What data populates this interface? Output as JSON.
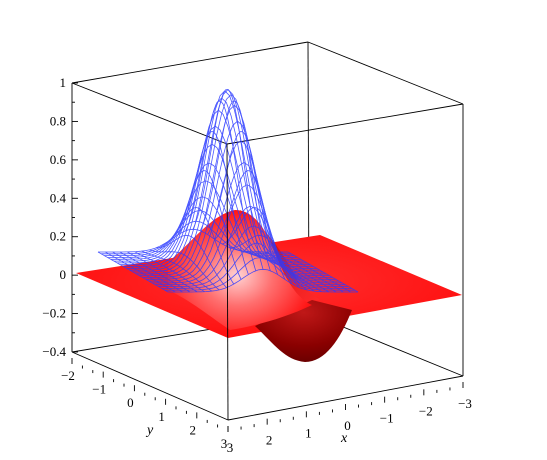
{
  "chart_data": {
    "type": "surface-3d",
    "title": "",
    "axes": {
      "x": {
        "label": "x",
        "range": [
          -3,
          3
        ],
        "ticks": [
          3,
          2,
          1,
          0,
          -1,
          -2,
          -3
        ],
        "tick_labels": [
          "3",
          "2",
          "1",
          "0",
          "−1",
          "−2",
          "−3"
        ]
      },
      "y": {
        "label": "y",
        "range": [
          -2,
          3
        ],
        "ticks": [
          -2,
          -1,
          0,
          1,
          2,
          3
        ],
        "tick_labels": [
          "−2",
          "−1",
          "0",
          "1",
          "2",
          "3"
        ]
      },
      "z": {
        "label": "",
        "range": [
          -0.4,
          1
        ],
        "ticks": [
          1,
          0.8,
          0.6,
          0.4,
          0.2,
          0,
          -0.2,
          -0.4
        ],
        "tick_labels": [
          "1",
          "0.8",
          "0.6",
          "0.4",
          "0.2",
          "0",
          "−0.2",
          "−0.4"
        ]
      }
    },
    "series": [
      {
        "style": "wireframe",
        "color": "#2233ee",
        "z_max": 0.95,
        "peak": {
          "x": 0,
          "y": 0.25
        }
      },
      {
        "style": "shaded",
        "color": "#ff1010",
        "z_max": 0.35,
        "z_min": -0.45,
        "peak": {
          "x": 0.45,
          "y": 0.7
        },
        "trough": {
          "x": 0.2,
          "y": 1.35
        }
      }
    ]
  }
}
